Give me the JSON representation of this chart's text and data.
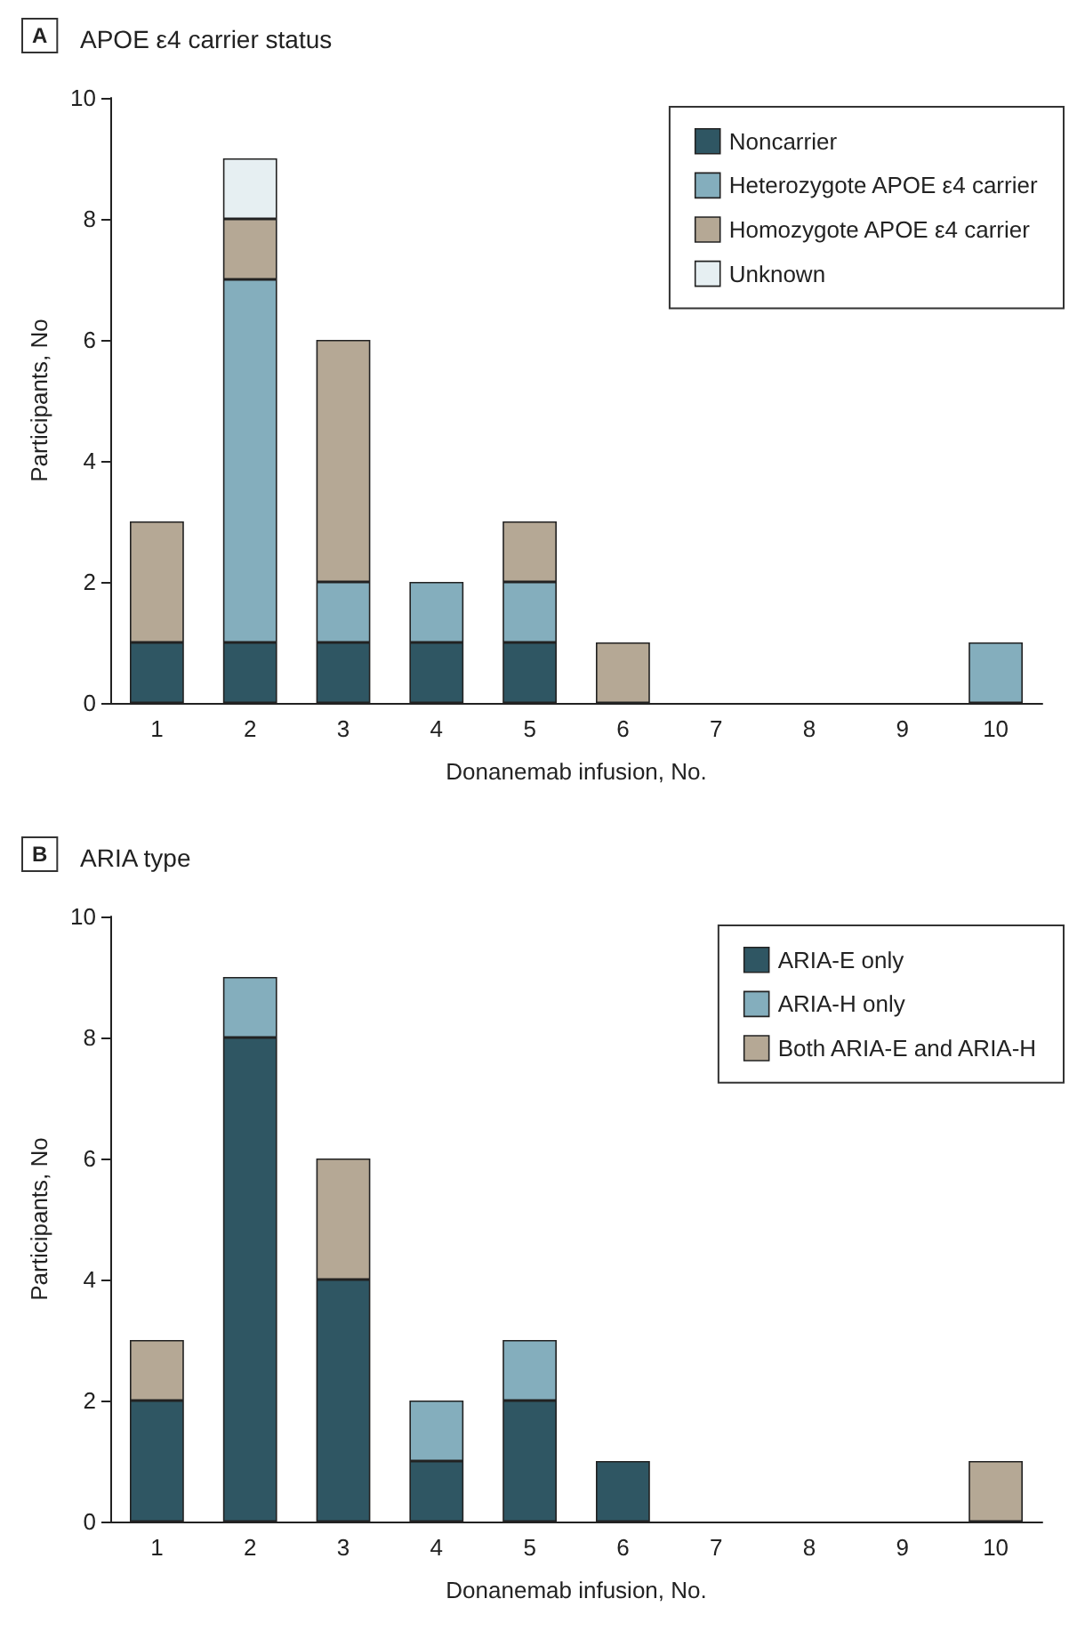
{
  "chart_data": [
    {
      "type": "bar",
      "title": "APOE ε4 carrier status",
      "annotations": [
        "A"
      ],
      "xlabel": "Donanemab infusion, No.",
      "ylabel": "Participants, No",
      "categories": [
        "1",
        "2",
        "3",
        "4",
        "5",
        "6",
        "7",
        "8",
        "9",
        "10"
      ],
      "stacked": true,
      "legend": "top right",
      "ylim": [
        0,
        10
      ],
      "yticks": [
        0,
        2,
        4,
        6,
        8,
        10
      ],
      "grid": false,
      "series": [
        {
          "name": "Noncarrier",
          "color": "#2f5663",
          "values": [
            1,
            1,
            1,
            1,
            1,
            null,
            null,
            null,
            null,
            null
          ]
        },
        {
          "name": "Heterozygote APOE ε4 carrier",
          "color": "#84aebd",
          "values": [
            null,
            6,
            1,
            1,
            1,
            null,
            null,
            null,
            null,
            1
          ]
        },
        {
          "name": "Homozygote APOE ε4 carrier",
          "color": "#b5a895",
          "values": [
            2,
            1,
            4,
            null,
            1,
            1,
            null,
            null,
            null,
            null
          ]
        },
        {
          "name": "Unknown",
          "color": "#e6eff2",
          "values": [
            null,
            1,
            null,
            null,
            null,
            null,
            null,
            null,
            null,
            null
          ]
        }
      ]
    },
    {
      "type": "bar",
      "title": "ARIA type",
      "annotations": [
        "B"
      ],
      "xlabel": "Donanemab infusion, No.",
      "ylabel": "Participants, No",
      "categories": [
        "1",
        "2",
        "3",
        "4",
        "5",
        "6",
        "7",
        "8",
        "9",
        "10"
      ],
      "stacked": true,
      "legend": "top right",
      "ylim": [
        0,
        10
      ],
      "yticks": [
        0,
        2,
        4,
        6,
        8,
        10
      ],
      "grid": false,
      "series": [
        {
          "name": "ARIA-E only",
          "color": "#2f5663",
          "values": [
            2,
            8,
            4,
            1,
            2,
            1,
            null,
            null,
            null,
            null
          ]
        },
        {
          "name": "ARIA-H only",
          "color": "#84aebd",
          "values": [
            null,
            1,
            null,
            1,
            1,
            null,
            null,
            null,
            null,
            null
          ]
        },
        {
          "name": "Both ARIA-E and ARIA-H",
          "color": "#b5a895",
          "values": [
            1,
            null,
            2,
            null,
            null,
            null,
            null,
            null,
            null,
            1
          ]
        }
      ]
    }
  ]
}
